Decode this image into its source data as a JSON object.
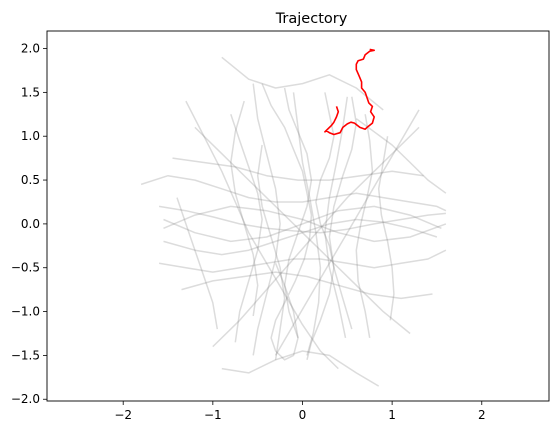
{
  "chart_data": {
    "type": "line",
    "title": "Trajectory",
    "xlabel": "",
    "ylabel": "",
    "xlim": [
      -2.85,
      2.75
    ],
    "ylim": [
      -2.02,
      2.2
    ],
    "x_ticks": [
      "−2",
      "−1",
      "0",
      "1",
      "2"
    ],
    "x_tick_values": [
      -2,
      -1,
      0,
      1,
      2
    ],
    "y_ticks": [
      "−2.0",
      "−1.5",
      "−1.0",
      "−0.5",
      "0.0",
      "0.5",
      "1.0",
      "1.5",
      "2.0"
    ],
    "y_tick_values": [
      -2.0,
      -1.5,
      -1.0,
      -0.5,
      0.0,
      0.5,
      1.0,
      1.5,
      2.0
    ],
    "grid": false,
    "colors": {
      "background_series": "#808080",
      "highlight_series": "#ff0000"
    },
    "series": [
      {
        "x": [
          -0.45,
          -0.35,
          -0.2,
          -0.1,
          0.0,
          0.05,
          0.1,
          0.08,
          0.02,
          -0.08,
          -0.2,
          -0.3,
          -0.35,
          -0.3,
          -0.2,
          -0.1,
          -0.05,
          -0.1,
          -0.2,
          -0.3
        ],
        "y": [
          1.6,
          1.35,
          1.1,
          0.85,
          0.6,
          0.35,
          0.1,
          -0.15,
          -0.4,
          -0.65,
          -0.9,
          -1.1,
          -1.3,
          -1.45,
          -1.55,
          -1.5,
          -1.3,
          -1.0,
          -0.7,
          -0.45
        ]
      },
      {
        "x": [
          -1.6,
          -1.3,
          -1.0,
          -0.7,
          -0.4,
          -0.1,
          0.2,
          0.5,
          0.8,
          1.1,
          1.4,
          1.6
        ],
        "y": [
          0.2,
          0.15,
          0.08,
          0.0,
          -0.05,
          -0.08,
          -0.1,
          -0.06,
          0.0,
          0.05,
          0.1,
          0.12
        ]
      },
      {
        "x": [
          -1.55,
          -1.2,
          -0.9,
          -0.6,
          -0.3,
          0.0,
          0.3,
          0.6,
          0.9,
          1.2,
          1.5
        ],
        "y": [
          -0.2,
          -0.3,
          -0.35,
          -0.3,
          -0.2,
          -0.1,
          0.0,
          0.05,
          0.02,
          -0.05,
          -0.15
        ]
      },
      {
        "x": [
          0.25,
          0.3,
          0.35,
          0.3,
          0.2,
          0.15,
          0.2,
          0.3,
          0.35,
          0.3,
          0.2,
          0.1,
          0.05
        ],
        "y": [
          1.5,
          1.25,
          1.0,
          0.75,
          0.5,
          0.25,
          0.0,
          -0.25,
          -0.5,
          -0.8,
          -1.1,
          -1.35,
          -1.55
        ]
      },
      {
        "x": [
          -0.8,
          -0.7,
          -0.6,
          -0.5,
          -0.45,
          -0.5,
          -0.6,
          -0.7,
          -0.75
        ],
        "y": [
          1.25,
          0.95,
          0.65,
          0.35,
          0.05,
          -0.3,
          -0.65,
          -1.0,
          -1.35
        ]
      },
      {
        "x": [
          0.7,
          0.75,
          0.78,
          0.72,
          0.65,
          0.6,
          0.62,
          0.7,
          0.75
        ],
        "y": [
          1.25,
          0.95,
          0.6,
          0.3,
          0.0,
          -0.3,
          -0.65,
          -1.0,
          -1.3
        ]
      },
      {
        "x": [
          -1.3,
          -1.1,
          -0.9,
          -0.75,
          -0.6,
          -0.4,
          -0.2,
          0.0,
          0.2,
          0.4
        ],
        "y": [
          1.4,
          1.0,
          0.6,
          0.25,
          -0.1,
          -0.45,
          -0.8,
          -1.15,
          -1.45,
          -1.65
        ]
      },
      {
        "x": [
          1.3,
          1.1,
          0.9,
          0.7,
          0.5,
          0.3,
          0.1,
          -0.1,
          -0.3
        ],
        "y": [
          1.3,
          0.95,
          0.6,
          0.25,
          -0.1,
          -0.45,
          -0.8,
          -1.15,
          -1.5
        ]
      },
      {
        "x": [
          -1.8,
          -1.5,
          -1.2,
          -0.9,
          -0.6,
          -0.3,
          0.0,
          0.3,
          0.6,
          0.9,
          1.2,
          1.5,
          1.6
        ],
        "y": [
          0.45,
          0.55,
          0.5,
          0.4,
          0.3,
          0.25,
          0.25,
          0.3,
          0.35,
          0.3,
          0.25,
          0.2,
          0.15
        ]
      },
      {
        "x": [
          -1.6,
          -1.3,
          -1.0,
          -0.7,
          -0.4,
          -0.1,
          0.2,
          0.5,
          0.8,
          1.1,
          1.4,
          1.6
        ],
        "y": [
          -0.45,
          -0.5,
          -0.55,
          -0.5,
          -0.45,
          -0.4,
          -0.4,
          -0.45,
          -0.5,
          -0.45,
          -0.4,
          -0.3
        ]
      },
      {
        "x": [
          -0.2,
          -0.15,
          -0.05,
          0.05,
          0.1,
          0.05,
          -0.05,
          -0.15,
          -0.2,
          -0.15,
          -0.05
        ],
        "y": [
          1.55,
          1.3,
          1.05,
          0.8,
          0.5,
          0.2,
          -0.1,
          -0.4,
          -0.7,
          -1.0,
          -1.3
        ]
      },
      {
        "x": [
          -0.55,
          -0.5,
          -0.4,
          -0.3,
          -0.25,
          -0.3,
          -0.4,
          -0.5,
          -0.55
        ],
        "y": [
          1.6,
          1.2,
          0.8,
          0.4,
          0.0,
          -0.4,
          -0.8,
          -1.2,
          -1.5
        ]
      },
      {
        "x": [
          0.5,
          0.45,
          0.38,
          0.3,
          0.25,
          0.3,
          0.4,
          0.48
        ],
        "y": [
          1.45,
          1.1,
          0.7,
          0.3,
          -0.1,
          -0.5,
          -0.9,
          -1.3
        ]
      },
      {
        "x": [
          -1.0,
          -0.7,
          -0.4,
          -0.1,
          0.2,
          0.5,
          0.8,
          1.1,
          1.3
        ],
        "y": [
          -1.4,
          -1.1,
          -0.75,
          -0.4,
          -0.05,
          0.3,
          0.6,
          0.9,
          1.1
        ]
      },
      {
        "x": [
          -1.2,
          -0.9,
          -0.6,
          -0.3,
          0.0,
          0.3,
          0.6,
          0.9,
          1.2
        ],
        "y": [
          1.1,
          0.8,
          0.5,
          0.2,
          -0.1,
          -0.4,
          -0.7,
          -1.0,
          -1.25
        ]
      },
      {
        "x": [
          -0.9,
          -0.6,
          -0.3,
          0.0,
          0.3,
          0.6,
          0.9
        ],
        "y": [
          1.9,
          1.65,
          1.55,
          1.6,
          1.7,
          1.55,
          1.3
        ]
      },
      {
        "x": [
          -0.9,
          -0.6,
          -0.3,
          0.0,
          0.3,
          0.6,
          0.85
        ],
        "y": [
          -1.65,
          -1.7,
          -1.55,
          -1.45,
          -1.5,
          -1.7,
          -1.85
        ]
      },
      {
        "x": [
          -1.55,
          -1.2,
          -0.8,
          -0.4,
          0.0,
          0.4,
          0.8,
          1.2,
          1.55
        ],
        "y": [
          0.05,
          -0.1,
          -0.2,
          -0.15,
          0.0,
          0.15,
          0.2,
          0.1,
          -0.05
        ]
      },
      {
        "x": [
          -1.55,
          -1.2,
          -0.8,
          -0.4,
          0.0,
          0.4,
          0.8,
          1.2,
          1.6
        ],
        "y": [
          -0.05,
          0.1,
          0.2,
          0.15,
          0.05,
          -0.1,
          -0.2,
          -0.15,
          0.0
        ]
      },
      {
        "x": [
          -0.1,
          -0.05,
          0.0,
          0.08,
          0.15,
          0.2,
          0.18,
          0.12,
          0.05
        ],
        "y": [
          1.5,
          1.1,
          0.7,
          0.3,
          -0.1,
          -0.5,
          -0.9,
          -1.25,
          -1.5
        ]
      },
      {
        "x": [
          0.55,
          0.6,
          0.55,
          0.45,
          0.35,
          0.3,
          0.35,
          0.45,
          0.55
        ],
        "y": [
          1.45,
          1.15,
          0.85,
          0.55,
          0.2,
          -0.15,
          -0.5,
          -0.85,
          -1.2
        ]
      },
      {
        "x": [
          -0.65,
          -0.75,
          -0.8,
          -0.75,
          -0.65,
          -0.55,
          -0.5,
          -0.55
        ],
        "y": [
          1.4,
          1.05,
          0.7,
          0.35,
          0.0,
          -0.35,
          -0.7,
          -1.05
        ]
      },
      {
        "x": [
          -1.35,
          -1.0,
          -0.65,
          -0.3,
          0.05,
          0.4,
          0.75,
          1.1,
          1.45
        ],
        "y": [
          -0.75,
          -0.65,
          -0.6,
          -0.55,
          -0.6,
          -0.7,
          -0.8,
          -0.85,
          -0.8
        ]
      },
      {
        "x": [
          -1.45,
          -1.1,
          -0.75,
          -0.4,
          -0.05,
          0.3,
          0.65,
          1.0,
          1.35
        ],
        "y": [
          0.75,
          0.7,
          0.65,
          0.55,
          0.5,
          0.5,
          0.55,
          0.6,
          0.55
        ]
      },
      {
        "x": [
          -0.3,
          -0.25,
          -0.2,
          -0.25,
          -0.35,
          -0.45,
          -0.5,
          -0.45
        ],
        "y": [
          -1.55,
          -1.2,
          -0.85,
          -0.5,
          -0.15,
          0.2,
          0.55,
          0.9
        ]
      },
      {
        "x": [
          0.95,
          0.9,
          0.85,
          0.88,
          0.95,
          1.0,
          1.02,
          0.98
        ],
        "y": [
          1.0,
          0.7,
          0.4,
          0.1,
          -0.2,
          -0.5,
          -0.8,
          -1.1
        ]
      },
      {
        "x": [
          -1.4,
          -1.3,
          -1.2,
          -1.1,
          -1.0,
          -0.95
        ],
        "y": [
          0.3,
          0.0,
          -0.3,
          -0.6,
          -0.9,
          -1.2
        ]
      },
      {
        "x": [
          1.6,
          1.4,
          1.2,
          1.0,
          0.8,
          0.6
        ],
        "y": [
          0.35,
          0.5,
          0.7,
          0.9,
          1.05,
          1.2
        ]
      }
    ],
    "highlight": {
      "x": [
        0.75,
        0.8,
        0.75,
        0.7,
        0.68,
        0.62,
        0.6,
        0.6,
        0.63,
        0.66,
        0.66,
        0.7,
        0.72,
        0.74,
        0.78,
        0.76,
        0.8,
        0.78,
        0.72,
        0.7,
        0.64,
        0.58,
        0.54,
        0.5,
        0.45,
        0.42,
        0.35,
        0.3,
        0.27,
        0.25,
        0.28,
        0.32,
        0.35,
        0.38,
        0.4,
        0.38
      ],
      "y": [
        1.99,
        1.98,
        1.97,
        1.93,
        1.88,
        1.86,
        1.82,
        1.76,
        1.69,
        1.62,
        1.55,
        1.5,
        1.44,
        1.38,
        1.34,
        1.28,
        1.22,
        1.15,
        1.1,
        1.08,
        1.1,
        1.15,
        1.16,
        1.14,
        1.1,
        1.04,
        1.02,
        1.04,
        1.06,
        1.05,
        1.08,
        1.12,
        1.16,
        1.22,
        1.28,
        1.34
      ]
    }
  }
}
